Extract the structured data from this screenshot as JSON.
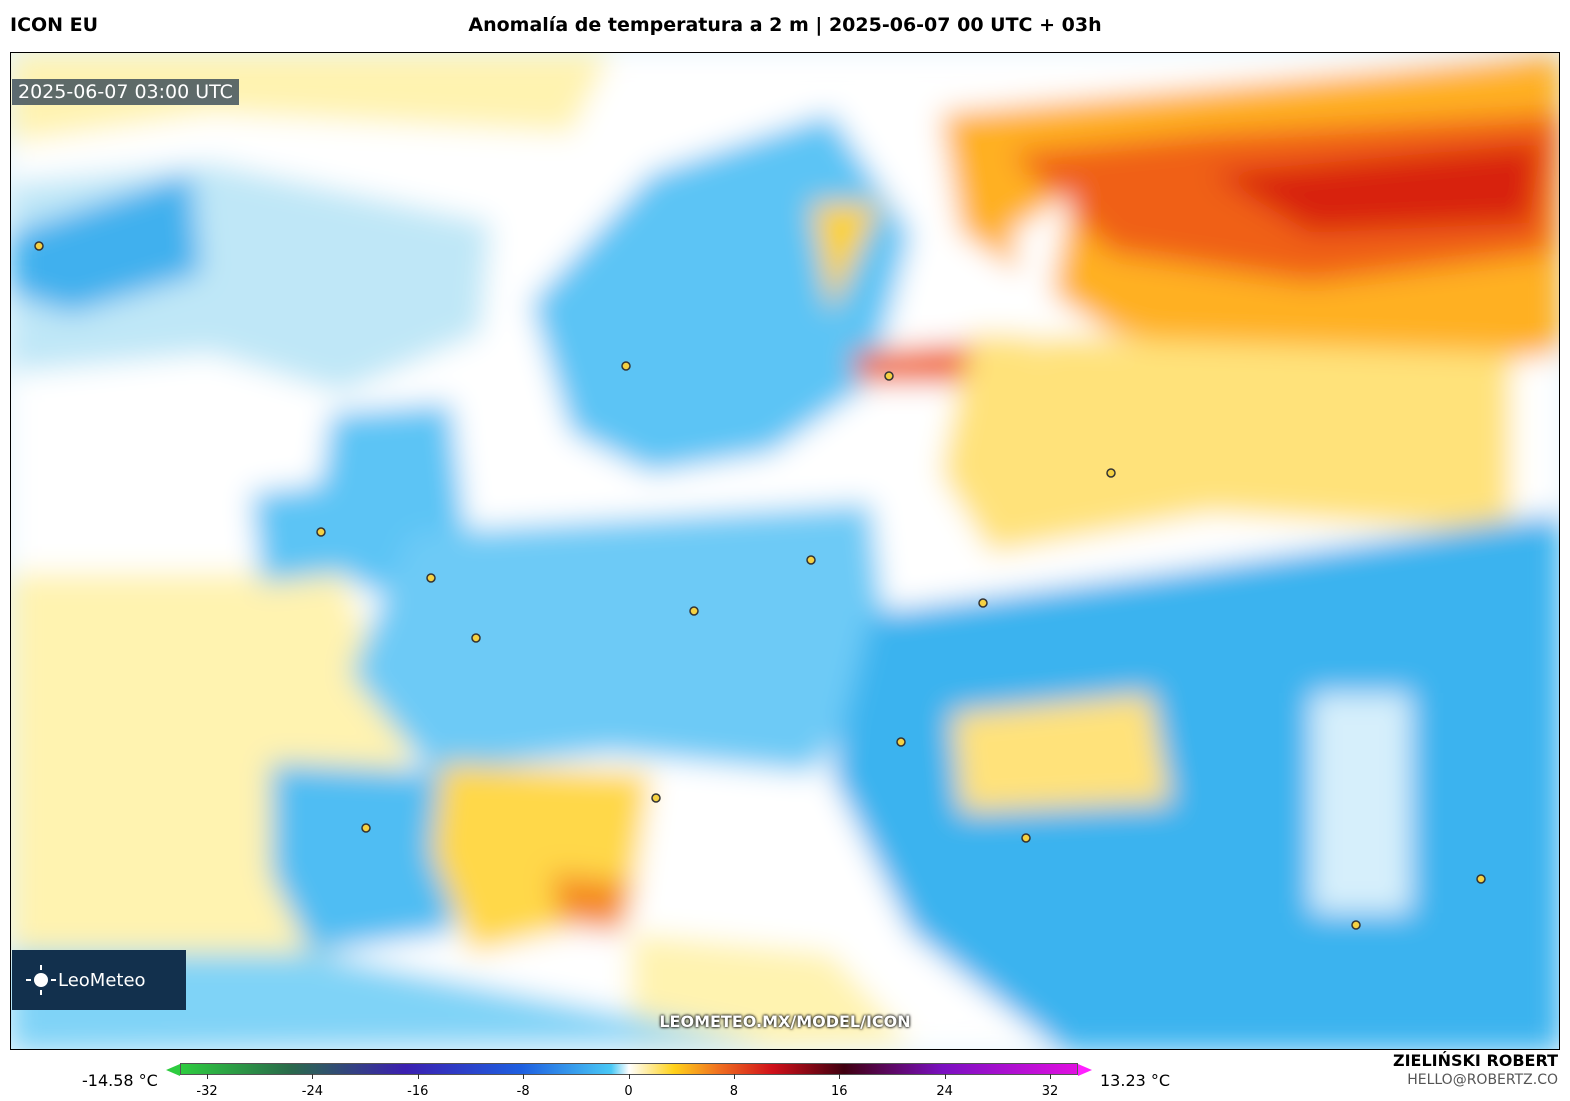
{
  "header": {
    "model": "ICON EU",
    "title": "Anomalía de temperatura a 2 m | 2025-06-07 00 UTC + 03h"
  },
  "map": {
    "timestamp": "2025-06-07 03:00 UTC",
    "watermark": "LEOMETEO.MX/MODEL/ICON",
    "logo": "LeoMeteo"
  },
  "colorbar": {
    "ticks": [
      -32,
      -24,
      -16,
      -8,
      0,
      8,
      16,
      24,
      32
    ],
    "min_label": "-14.58 °C",
    "max_label": "13.23 °C"
  },
  "footer": {
    "author": "ZIELIŃSKI ROBERT",
    "email": "HELLO@ROBERTZ.CO"
  }
}
